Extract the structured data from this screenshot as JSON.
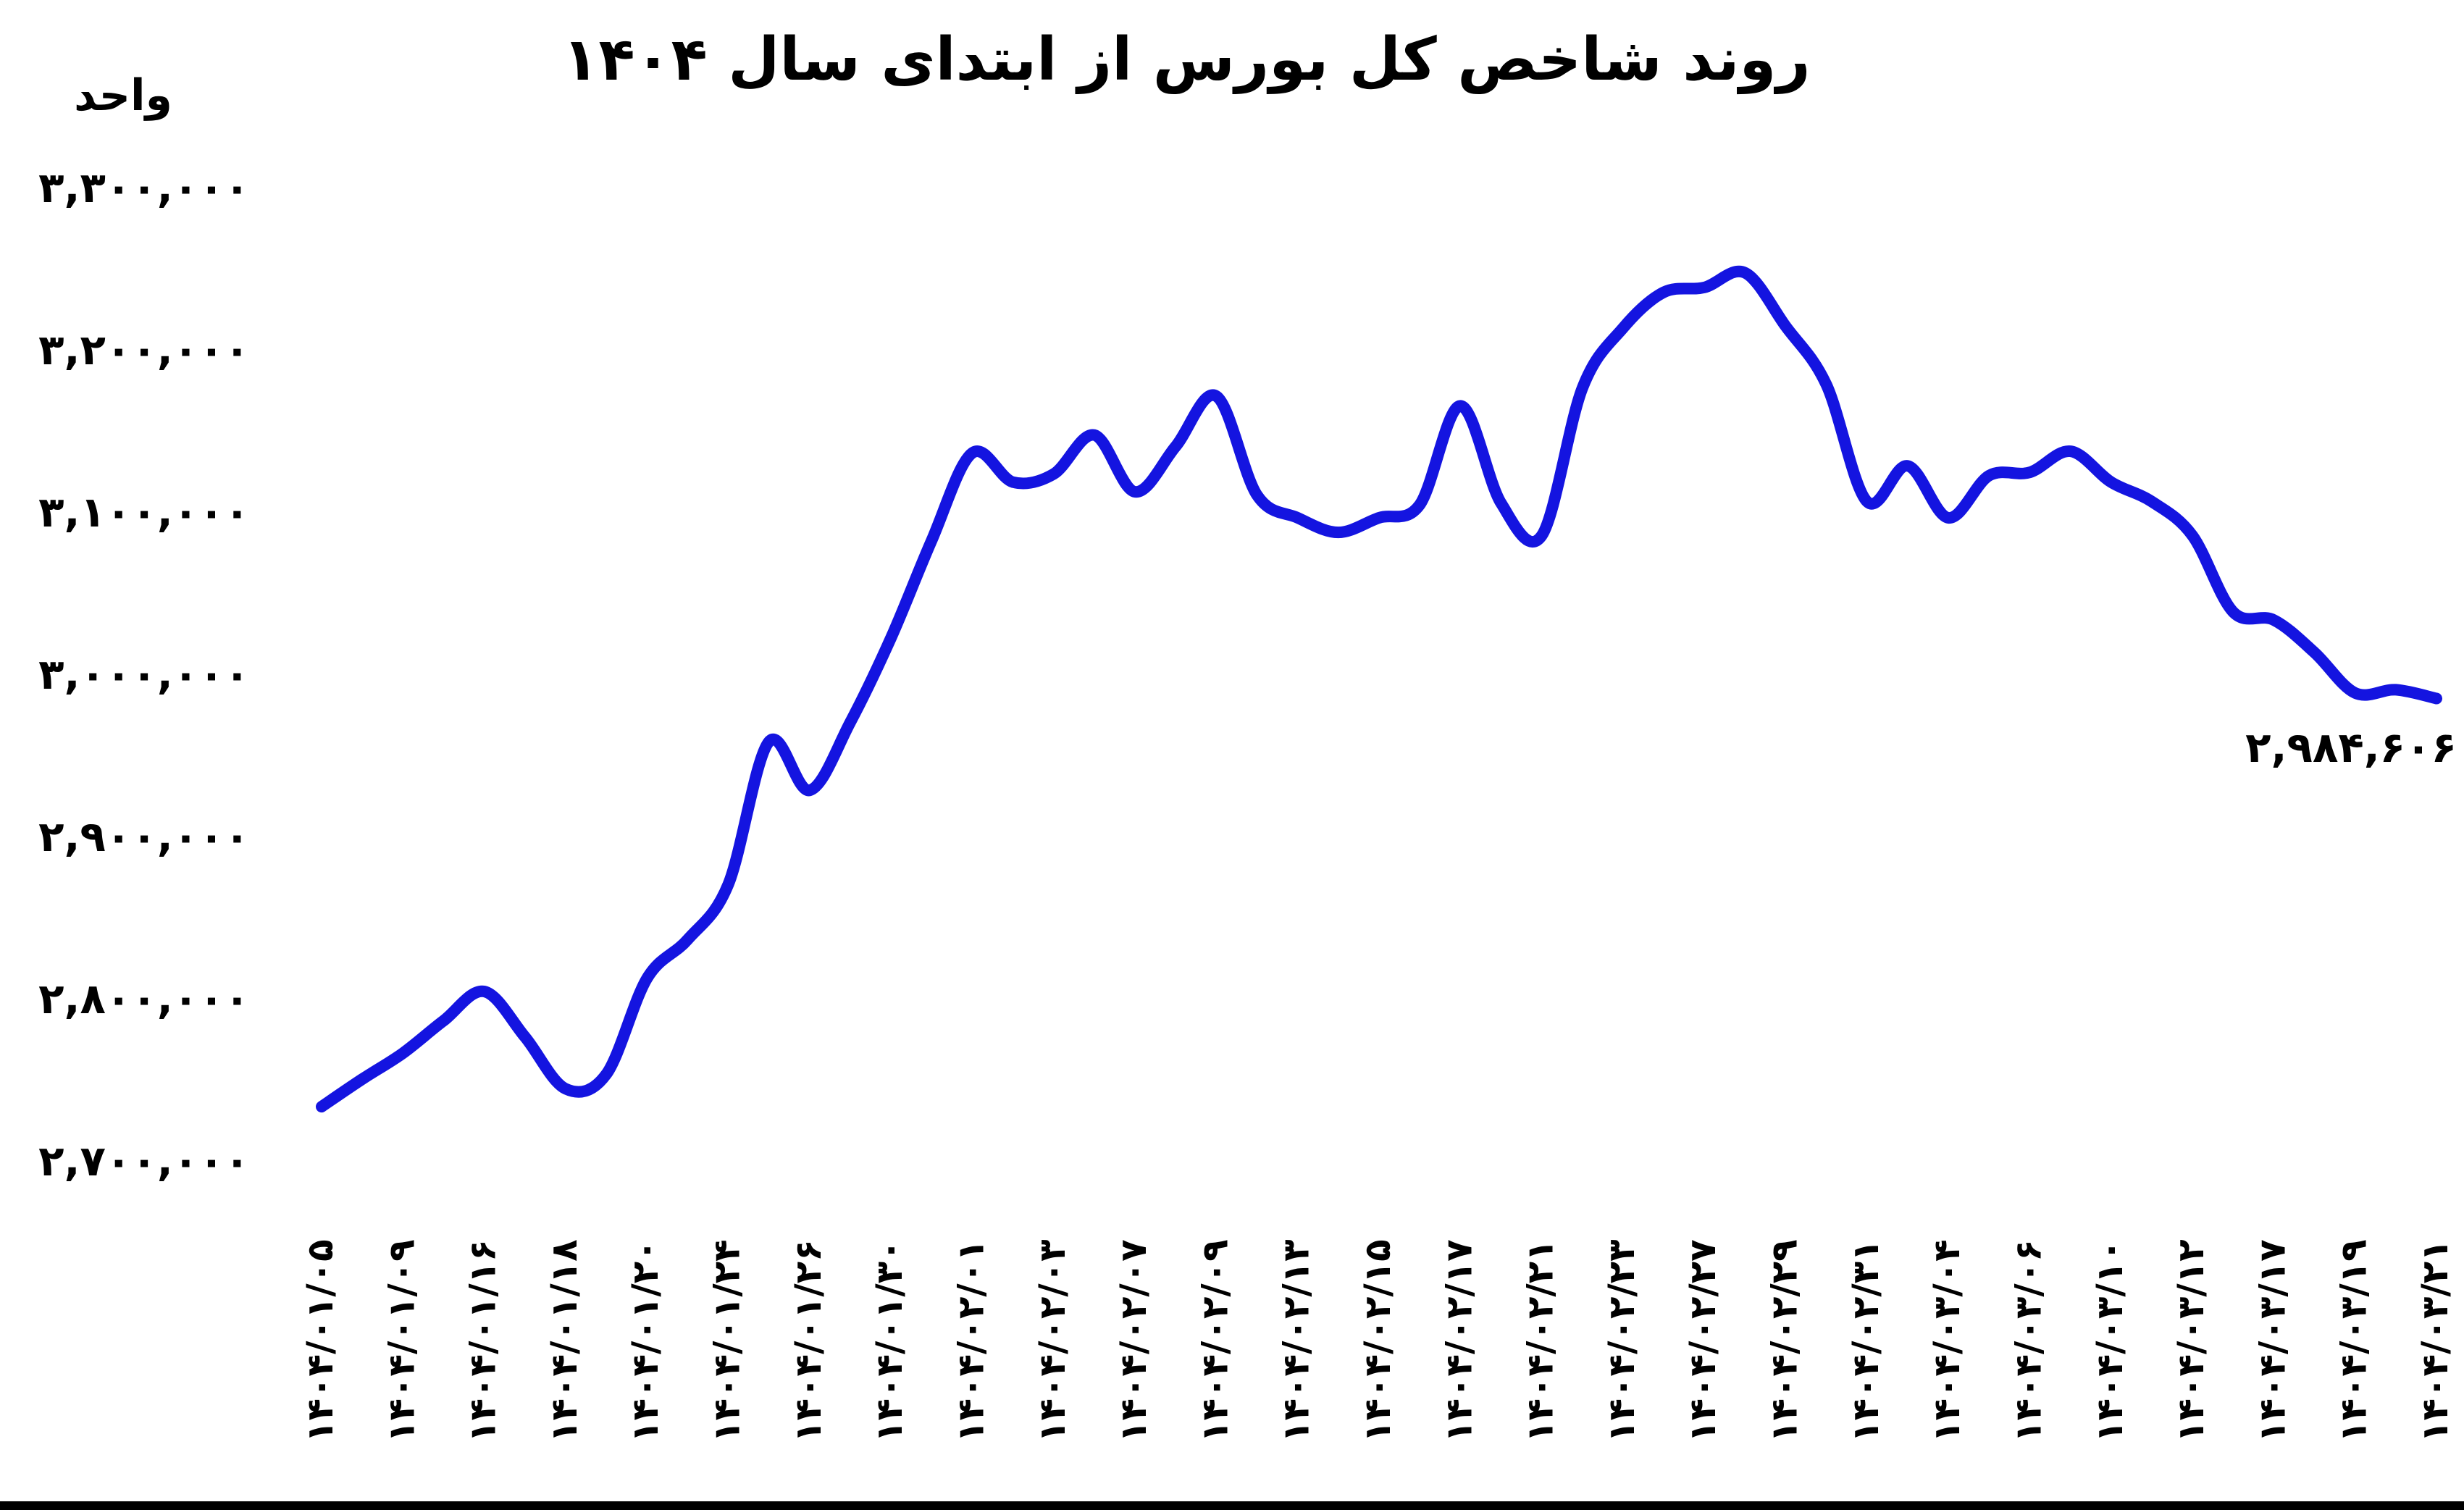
{
  "title": "روند شاخص کل بورس از ابتدای سال ۱۴۰۴",
  "y_axis_unit_label": "واحد",
  "last_value_annotation": "۲,۹۸۴,۶۰۶",
  "colors": {
    "line": "#1414e0",
    "text": "#000000",
    "background": "#ffffff",
    "bottom_border": "#000000"
  },
  "chart_data": {
    "type": "line",
    "title": "روند شاخص کل بورس از ابتدای سال ۱۴۰۴",
    "xlabel": "",
    "ylabel": "واحد",
    "grid": false,
    "legend": false,
    "ylim": [
      2700000,
      3300000
    ],
    "y_ticks": [
      3300000,
      3200000,
      3100000,
      3000000,
      2900000,
      2800000,
      2700000
    ],
    "y_tick_labels": [
      "۳,۳۰۰,۰۰۰",
      "۳,۲۰۰,۰۰۰",
      "۳,۱۰۰,۰۰۰",
      "۳,۰۰۰,۰۰۰",
      "۲,۹۰۰,۰۰۰",
      "۲,۸۰۰,۰۰۰",
      "۲,۷۰۰,۰۰۰"
    ],
    "x_tick_labels": [
      "۱۴۰۴/۰۱/۰۵",
      "۱۴۰۴/۰۱/۰۹",
      "۱۴۰۴/۰۱/۱۶",
      "۱۴۰۴/۰۱/۱۸",
      "۱۴۰۴/۰۱/۲۰",
      "۱۴۰۴/۰۱/۲۴",
      "۱۴۰۴/۰۱/۲۶",
      "۱۴۰۴/۰۱/۳۰",
      "۱۴۰۴/۰۲/۰۱",
      "۱۴۰۴/۰۲/۰۳",
      "۱۴۰۴/۰۲/۰۷",
      "۱۴۰۴/۰۲/۰۹",
      "۱۴۰۴/۰۲/۱۳",
      "۱۴۰۴/۰۲/۱۵",
      "۱۴۰۴/۰۲/۱۷",
      "۱۴۰۴/۰۲/۲۱",
      "۱۴۰۴/۰۲/۲۳",
      "۱۴۰۴/۰۲/۲۷",
      "۱۴۰۴/۰۲/۲۹",
      "۱۴۰۴/۰۲/۳۱",
      "۱۴۰۴/۰۳/۰۴",
      "۱۴۰۴/۰۳/۰۶",
      "۱۴۰۴/۰۳/۱۰",
      "۱۴۰۴/۰۳/۱۲",
      "۱۴۰۴/۰۳/۱۷",
      "۱۴۰۴/۰۳/۱۹",
      "۱۴۰۴/۰۳/۲۱"
    ],
    "points_per_tick": 2,
    "values": [
      2733000,
      2750000,
      2766000,
      2786000,
      2804000,
      2776000,
      2744000,
      2753000,
      2812000,
      2836000,
      2870000,
      2958000,
      2928000,
      2970000,
      3022000,
      3082000,
      3136000,
      3118000,
      3123000,
      3147000,
      3112000,
      3140000,
      3171000,
      3110000,
      3096000,
      3087000,
      3096000,
      3104000,
      3165000,
      3105000,
      3085000,
      3176000,
      3213000,
      3235000,
      3238000,
      3247000,
      3214000,
      3178000,
      3106000,
      3128000,
      3096000,
      3122000,
      3124000,
      3137000,
      3118000,
      3106000,
      3085000,
      3038000,
      3033000,
      3013000,
      2988000,
      2990000,
      2984606
    ],
    "last_value": 2984606
  }
}
